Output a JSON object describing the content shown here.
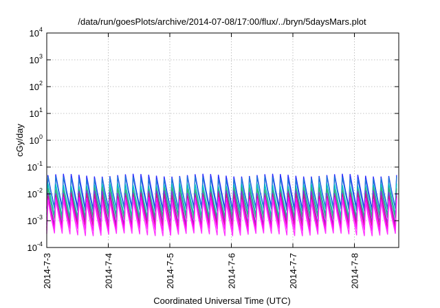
{
  "chart_data": {
    "type": "line",
    "title": "/data/run/goesPlots/archive/2014-07-08/17:00/flux/../bryn/5daysMars.plot",
    "xlabel": "Coordinated Universal Time (UTC)",
    "ylabel": "cGy/day",
    "yscale": "log",
    "ylim": [
      0.0001,
      10000
    ],
    "xlim": [
      "2014-07-03",
      "2014-07-08 19:00"
    ],
    "grid": true,
    "x_ticks": [
      "2014-7-3",
      "2014-7-4",
      "2014-7-5",
      "2014-7-6",
      "2014-7-7",
      "2014-7-8"
    ],
    "y_ticks": [
      {
        "base": "10",
        "exp": "-4"
      },
      {
        "base": "10",
        "exp": "-3"
      },
      {
        "base": "10",
        "exp": "-2"
      },
      {
        "base": "10",
        "exp": "-1"
      },
      {
        "base": "10",
        "exp": "0"
      },
      {
        "base": "10",
        "exp": "1"
      },
      {
        "base": "10",
        "exp": "2"
      },
      {
        "base": "10",
        "exp": "3"
      },
      {
        "base": "10",
        "exp": "4"
      }
    ],
    "cycles_per_day": 8,
    "series": [
      {
        "color": "#2b2bff",
        "peak": 0.05,
        "trough": 0.003
      },
      {
        "color": "#1e7bd6",
        "peak": 0.04,
        "trough": 0.0025
      },
      {
        "color": "#00bfbf",
        "peak": 0.022,
        "trough": 0.0015
      },
      {
        "color": "#3cb371",
        "peak": 0.016,
        "trough": 0.0012
      },
      {
        "color": "#8a2be2",
        "peak": 0.012,
        "trough": 0.0008
      },
      {
        "color": "#d1168a",
        "peak": 0.0095,
        "trough": 0.0006
      },
      {
        "color": "#ff00ff",
        "peak": 0.007,
        "trough": 0.00045
      },
      {
        "color": "#ff33ff",
        "peak": 0.0055,
        "trough": 0.0003
      }
    ]
  }
}
